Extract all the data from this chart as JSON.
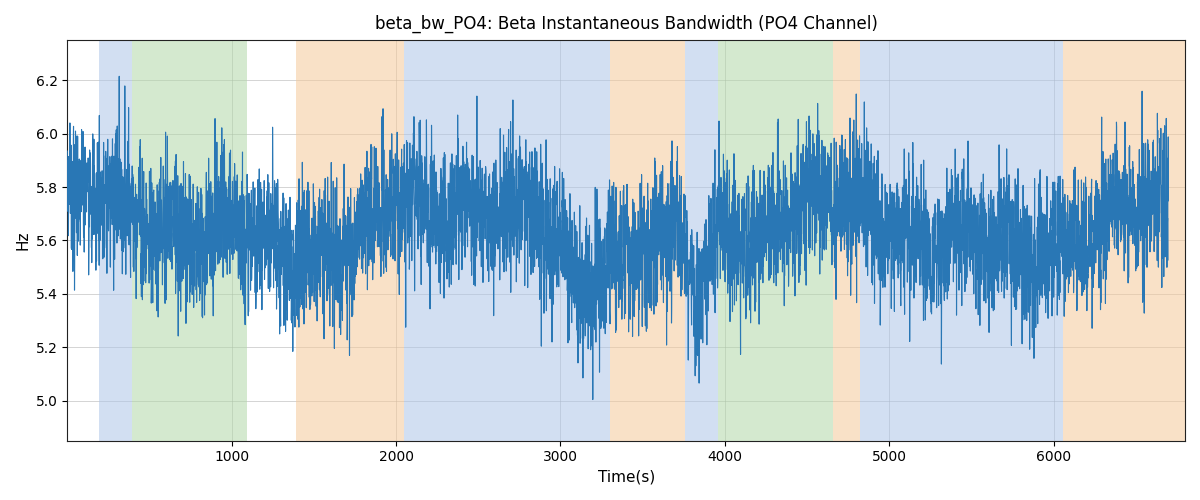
{
  "title": "beta_bw_PO4: Beta Instantaneous Bandwidth (PO4 Channel)",
  "xlabel": "Time(s)",
  "ylabel": "Hz",
  "ylim": [
    4.85,
    6.35
  ],
  "xlim": [
    0,
    6800
  ],
  "line_color": "#2977b5",
  "line_width": 0.8,
  "grid_color": "#aaaaaa",
  "title_fontsize": 12,
  "label_fontsize": 11,
  "figsize": [
    12.0,
    5.0
  ],
  "dpi": 100,
  "bands": [
    {
      "start": 195,
      "end": 395,
      "color": "#aec6e8",
      "alpha": 0.55
    },
    {
      "start": 395,
      "end": 1095,
      "color": "#b2d8a8",
      "alpha": 0.55
    },
    {
      "start": 1390,
      "end": 2050,
      "color": "#f5c99a",
      "alpha": 0.55
    },
    {
      "start": 2050,
      "end": 3300,
      "color": "#aec6e8",
      "alpha": 0.55
    },
    {
      "start": 3300,
      "end": 3760,
      "color": "#f5c99a",
      "alpha": 0.55
    },
    {
      "start": 3760,
      "end": 3960,
      "color": "#aec6e8",
      "alpha": 0.55
    },
    {
      "start": 3960,
      "end": 4660,
      "color": "#b2d8a8",
      "alpha": 0.55
    },
    {
      "start": 4660,
      "end": 4820,
      "color": "#f5c99a",
      "alpha": 0.55
    },
    {
      "start": 4820,
      "end": 6060,
      "color": "#aec6e8",
      "alpha": 0.55
    },
    {
      "start": 6060,
      "end": 6800,
      "color": "#f5c99a",
      "alpha": 0.55
    }
  ],
  "seed": 7,
  "n_points": 6700,
  "signal_mean": 5.65,
  "slow_amp1": 0.08,
  "slow_period1": 2200,
  "slow_phase1": 1.0,
  "slow_amp2": 0.05,
  "slow_period2": 900,
  "slow_phase2": 0.4,
  "med_amp": 0.04,
  "med_period": 300,
  "med_phase": 0.8,
  "noise_std": 0.1
}
